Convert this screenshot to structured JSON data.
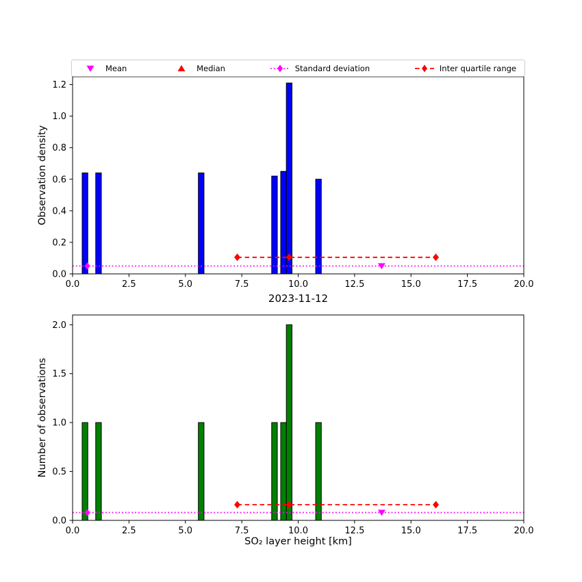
{
  "figure": {
    "background": "#ffffff"
  },
  "legend": {
    "items": [
      {
        "label": "Mean",
        "marker": "triangle-down",
        "color": "#ff00ff",
        "line": "none"
      },
      {
        "label": "Median",
        "marker": "triangle-up",
        "color": "#ff0000",
        "line": "none"
      },
      {
        "label": "Standard deviation",
        "marker": "diamond",
        "color": "#ff00ff",
        "line": "dotted"
      },
      {
        "label": "Inter quartile range",
        "marker": "diamond",
        "color": "#ff0000",
        "line": "dashed"
      }
    ]
  },
  "chart_data": [
    {
      "type": "bar",
      "title": "",
      "xlabel": "",
      "ylabel": "Observation density",
      "bar_color": "#0000ff",
      "bar_edge_color": "#000000",
      "bar_width": 0.25,
      "xlim": [
        0,
        20
      ],
      "ylim": [
        0,
        1.25
      ],
      "xtick_values": [
        0,
        2.5,
        5,
        7.5,
        10,
        12.5,
        15,
        17.5,
        20
      ],
      "xtick_labels": [
        "0.0",
        "2.5",
        "5.0",
        "7.5",
        "10.0",
        "12.5",
        "15.0",
        "17.5",
        "20.0"
      ],
      "ytick_values": [
        0,
        0.2,
        0.4,
        0.6,
        0.8,
        1.0,
        1.2
      ],
      "ytick_labels": [
        "0.0",
        "0.2",
        "0.4",
        "0.6",
        "0.8",
        "1.0",
        "1.2"
      ],
      "bar_x": [
        0.55,
        1.15,
        5.7,
        8.95,
        9.35,
        9.6,
        10.9
      ],
      "bar_heights": [
        0.64,
        0.64,
        0.64,
        0.62,
        0.65,
        1.21,
        0.6
      ],
      "overlays": {
        "std_line": {
          "y": 0.05,
          "x_start": 0,
          "x_end": 20,
          "color": "#ff00ff",
          "style": "dotted",
          "marker_x": [
            0.65
          ]
        },
        "iqr_line": {
          "y": 0.105,
          "x_start": 7.3,
          "x_end": 16.1,
          "color": "#ff0000",
          "style": "dashed",
          "marker_x": [
            7.3,
            9.6,
            16.1
          ]
        },
        "mean_marker": {
          "x": 13.7,
          "y": 0.05,
          "color": "#ff00ff",
          "marker": "triangle-down"
        }
      }
    },
    {
      "type": "bar",
      "title": "2023-11-12",
      "xlabel": "SO₂ layer height [km]",
      "ylabel": "Number of observations",
      "bar_color": "#008000",
      "bar_edge_color": "#000000",
      "bar_width": 0.25,
      "xlim": [
        0,
        20
      ],
      "ylim": [
        0,
        2.1
      ],
      "xtick_values": [
        0,
        2.5,
        5,
        7.5,
        10,
        12.5,
        15,
        17.5,
        20
      ],
      "xtick_labels": [
        "0.0",
        "2.5",
        "5.0",
        "7.5",
        "10.0",
        "12.5",
        "15.0",
        "17.5",
        "20.0"
      ],
      "ytick_values": [
        0,
        0.5,
        1.0,
        1.5,
        2.0
      ],
      "ytick_labels": [
        "0.0",
        "0.5",
        "1.0",
        "1.5",
        "2.0"
      ],
      "bar_x": [
        0.55,
        1.15,
        5.7,
        8.95,
        9.35,
        9.6,
        10.9
      ],
      "bar_heights": [
        1,
        1,
        1,
        1,
        1,
        2,
        1
      ],
      "overlays": {
        "std_line": {
          "y": 0.08,
          "x_start": 0,
          "x_end": 20,
          "color": "#ff00ff",
          "style": "dotted",
          "marker_x": [
            0.65
          ]
        },
        "iqr_line": {
          "y": 0.16,
          "x_start": 7.3,
          "x_end": 16.1,
          "color": "#ff0000",
          "style": "dashed",
          "marker_x": [
            7.3,
            9.6,
            16.1
          ]
        },
        "mean_marker": {
          "x": 13.7,
          "y": 0.08,
          "color": "#ff00ff",
          "marker": "triangle-down"
        }
      }
    }
  ]
}
